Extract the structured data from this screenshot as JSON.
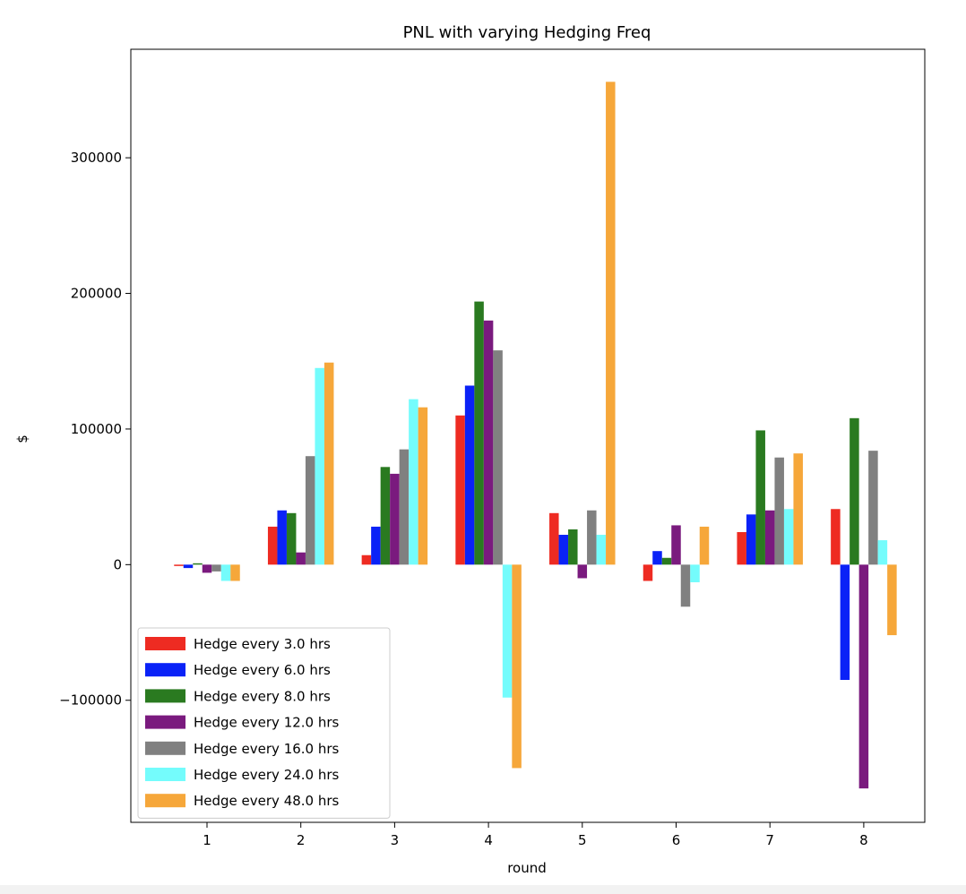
{
  "chart_data": {
    "type": "bar",
    "title": "PNL with varying Hedging Freq",
    "xlabel": "round",
    "ylabel": "$",
    "categories": [
      "1",
      "2",
      "3",
      "4",
      "5",
      "6",
      "7",
      "8"
    ],
    "ylim": [
      -190000,
      380000
    ],
    "yticks": [
      -100000,
      0,
      100000,
      200000,
      300000
    ],
    "ytick_labels": [
      "−100000",
      "0",
      "100000",
      "200000",
      "300000"
    ],
    "grid": false,
    "legend_position": "lower-left",
    "series": [
      {
        "name": "Hedge every 3.0 hrs",
        "color": "#ee2b22",
        "values": [
          -1000,
          28000,
          7000,
          110000,
          38000,
          -12000,
          24000,
          41000
        ]
      },
      {
        "name": "Hedge every 6.0 hrs",
        "color": "#0a22f7",
        "values": [
          -2500,
          40000,
          28000,
          132000,
          22000,
          10000,
          37000,
          -85000
        ]
      },
      {
        "name": "Hedge every 8.0 hrs",
        "color": "#2a7a20",
        "values": [
          1000,
          38000,
          72000,
          194000,
          26000,
          5000,
          99000,
          108000
        ]
      },
      {
        "name": "Hedge every 12.0 hrs",
        "color": "#7a1a7e",
        "values": [
          -6000,
          9000,
          67000,
          180000,
          -10000,
          29000,
          40000,
          -165000
        ]
      },
      {
        "name": "Hedge every 16.0 hrs",
        "color": "#808080",
        "values": [
          -5000,
          80000,
          85000,
          158000,
          40000,
          -31000,
          79000,
          84000
        ]
      },
      {
        "name": "Hedge every 24.0 hrs",
        "color": "#74fcfc",
        "values": [
          -12000,
          145000,
          122000,
          -98000,
          22000,
          -13000,
          41000,
          18000
        ]
      },
      {
        "name": "Hedge every 48.0 hrs",
        "color": "#f6a73a",
        "values": [
          -12000,
          149000,
          116000,
          -150000,
          356000,
          28000,
          82000,
          -52000
        ]
      }
    ]
  }
}
